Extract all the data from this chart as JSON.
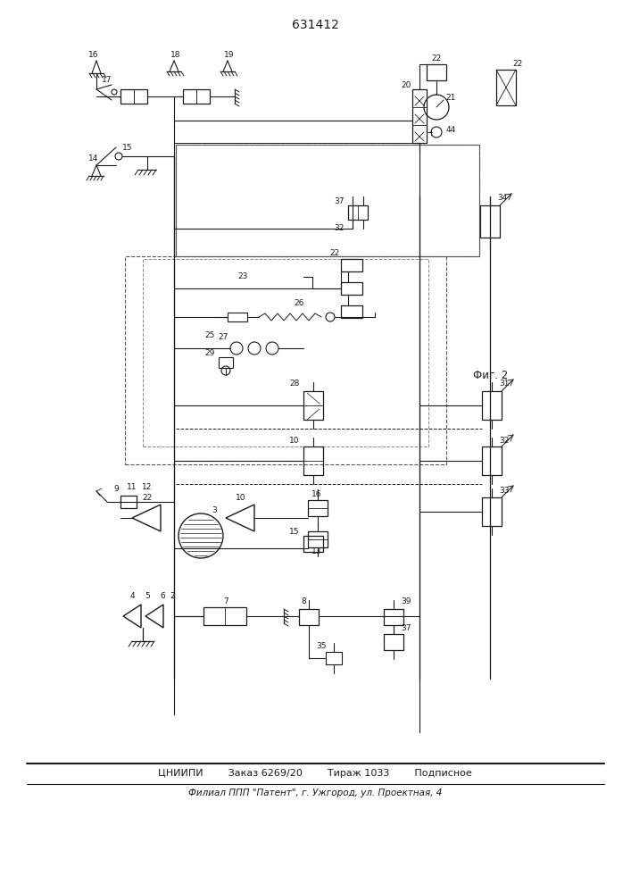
{
  "title": "631412",
  "footer_line1": "ЦНИИПИ        Заказ 6269/20        Тираж 1033        Подписное",
  "footer_line2": "Филиал ППП \"Патент\", г. Ужгород, ул. Проектная, 4",
  "fig_label": "Фиг. 2",
  "bg_color": "#ffffff",
  "fig_width": 7.07,
  "fig_height": 10.0
}
